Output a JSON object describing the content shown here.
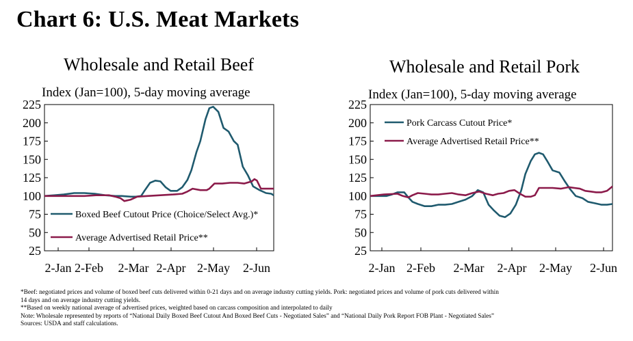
{
  "title": "Chart 6: U.S. Meat Markets",
  "colors": {
    "wholesale": "#1f5a6e",
    "retail": "#8b1a4a"
  },
  "chart_data": [
    {
      "type": "line",
      "title": "Wholesale and Retail Beef",
      "subtitle": "Index (Jan=100), 5-day moving average",
      "xlabel": "",
      "ylabel": "",
      "x_ticks": [
        "2-Jan",
        "2-Feb",
        "2-Mar",
        "2-Apr",
        "2-May",
        "2-Jun"
      ],
      "xlim": [
        0,
        178
      ],
      "ylim": [
        25,
        225
      ],
      "y_ticks": [
        25,
        50,
        75,
        100,
        125,
        150,
        175,
        200,
        225
      ],
      "legend": "inside-bottom-left",
      "series": [
        {
          "name": "Boxed Beef Cutout Price (Choice/Select Avg.)*",
          "color": "#1f5a6e",
          "x": [
            0,
            8,
            15,
            23,
            31,
            39,
            47,
            55,
            60,
            67,
            71,
            75,
            78,
            82,
            86,
            90,
            94,
            98,
            103,
            107,
            111,
            114,
            118,
            121,
            125,
            128,
            131,
            135,
            139,
            143,
            147,
            150,
            154,
            158,
            162,
            167,
            172,
            176,
            178
          ],
          "y": [
            100,
            101,
            102,
            104,
            104,
            103,
            101,
            100,
            100,
            99,
            99,
            100,
            108,
            118,
            121,
            120,
            112,
            107,
            107,
            112,
            122,
            135,
            160,
            175,
            205,
            220,
            222,
            215,
            193,
            188,
            175,
            170,
            140,
            128,
            113,
            108,
            104,
            103,
            101
          ]
        },
        {
          "name": "Average Advertised Retail Price**",
          "color": "#8b1a4a",
          "x": [
            0,
            10,
            20,
            31,
            40,
            50,
            55,
            59,
            62,
            67,
            72,
            80,
            90,
            100,
            107,
            111,
            115,
            121,
            126,
            128,
            132,
            138,
            144,
            150,
            155,
            161,
            163,
            165,
            168,
            173,
            178
          ],
          "y": [
            100,
            100,
            100,
            100,
            101,
            101,
            99,
            97,
            93,
            95,
            99,
            100,
            101,
            102,
            103,
            106,
            110,
            108,
            108,
            110,
            117,
            117,
            118,
            118,
            117,
            120,
            123,
            121,
            110,
            110,
            110
          ]
        }
      ]
    },
    {
      "type": "line",
      "title": "Wholesale and Retail Pork",
      "subtitle": "Index (Jan=100), 5-day moving average",
      "xlabel": "",
      "ylabel": "",
      "x_ticks": [
        "2-Jan",
        "2-Feb",
        "2-Mar",
        "2-Apr",
        "2-May",
        "2-Jun"
      ],
      "xlim": [
        0,
        178
      ],
      "ylim": [
        25,
        225
      ],
      "y_ticks": [
        25,
        50,
        75,
        100,
        125,
        150,
        175,
        200,
        225
      ],
      "legend": "inside-top-left",
      "series": [
        {
          "name": "Pork Carcass Cutout Price*",
          "color": "#1f5a6e",
          "x": [
            0,
            6,
            12,
            16,
            20,
            25,
            28,
            31,
            35,
            40,
            45,
            50,
            55,
            60,
            65,
            70,
            75,
            79,
            83,
            87,
            91,
            95,
            99,
            103,
            107,
            111,
            114,
            118,
            121,
            124,
            127,
            130,
            134,
            139,
            143,
            147,
            151,
            156,
            160,
            165,
            170,
            174,
            178
          ],
          "y": [
            100,
            100,
            100,
            102,
            105,
            105,
            98,
            92,
            89,
            86,
            86,
            88,
            88,
            89,
            92,
            95,
            100,
            108,
            105,
            88,
            80,
            73,
            71,
            76,
            88,
            108,
            130,
            148,
            157,
            159,
            157,
            148,
            135,
            132,
            120,
            109,
            100,
            97,
            92,
            90,
            88,
            88,
            89
          ]
        },
        {
          "name": "Average Advertised Retail Price**",
          "color": "#8b1a4a",
          "x": [
            0,
            10,
            20,
            24,
            28,
            31,
            35,
            40,
            45,
            50,
            55,
            60,
            65,
            70,
            75,
            80,
            85,
            90,
            94,
            98,
            102,
            106,
            110,
            114,
            118,
            121,
            124,
            128,
            134,
            140,
            146,
            150,
            154,
            158,
            162,
            166,
            170,
            174,
            178
          ],
          "y": [
            100,
            102,
            103,
            100,
            98,
            101,
            104,
            103,
            102,
            102,
            103,
            104,
            102,
            101,
            104,
            106,
            103,
            101,
            103,
            104,
            107,
            108,
            103,
            99,
            99,
            101,
            111,
            111,
            111,
            110,
            112,
            111,
            110,
            107,
            106,
            105,
            105,
            107,
            113
          ]
        }
      ]
    }
  ],
  "notes": [
    "*Beef: negotiated prices and volume of boxed beef cuts delivered within 0-21 days and on average industry cutting yields. Pork: negotiated prices and volume of pork cuts delivered within",
    "14 days and on average industry cutting yields.",
    "**Based on weekly national average of advertised prices, weighted based on carcass composition and interpolated to daily",
    "Note: Wholesale represented by reports of “National Daily Boxed Beef Cutout And Boxed Beef Cuts - Negotiated Sales” and “National Daily Pork Report FOB Plant - Negotiated Sales”",
    "Sources: USDA and staff calculations."
  ]
}
